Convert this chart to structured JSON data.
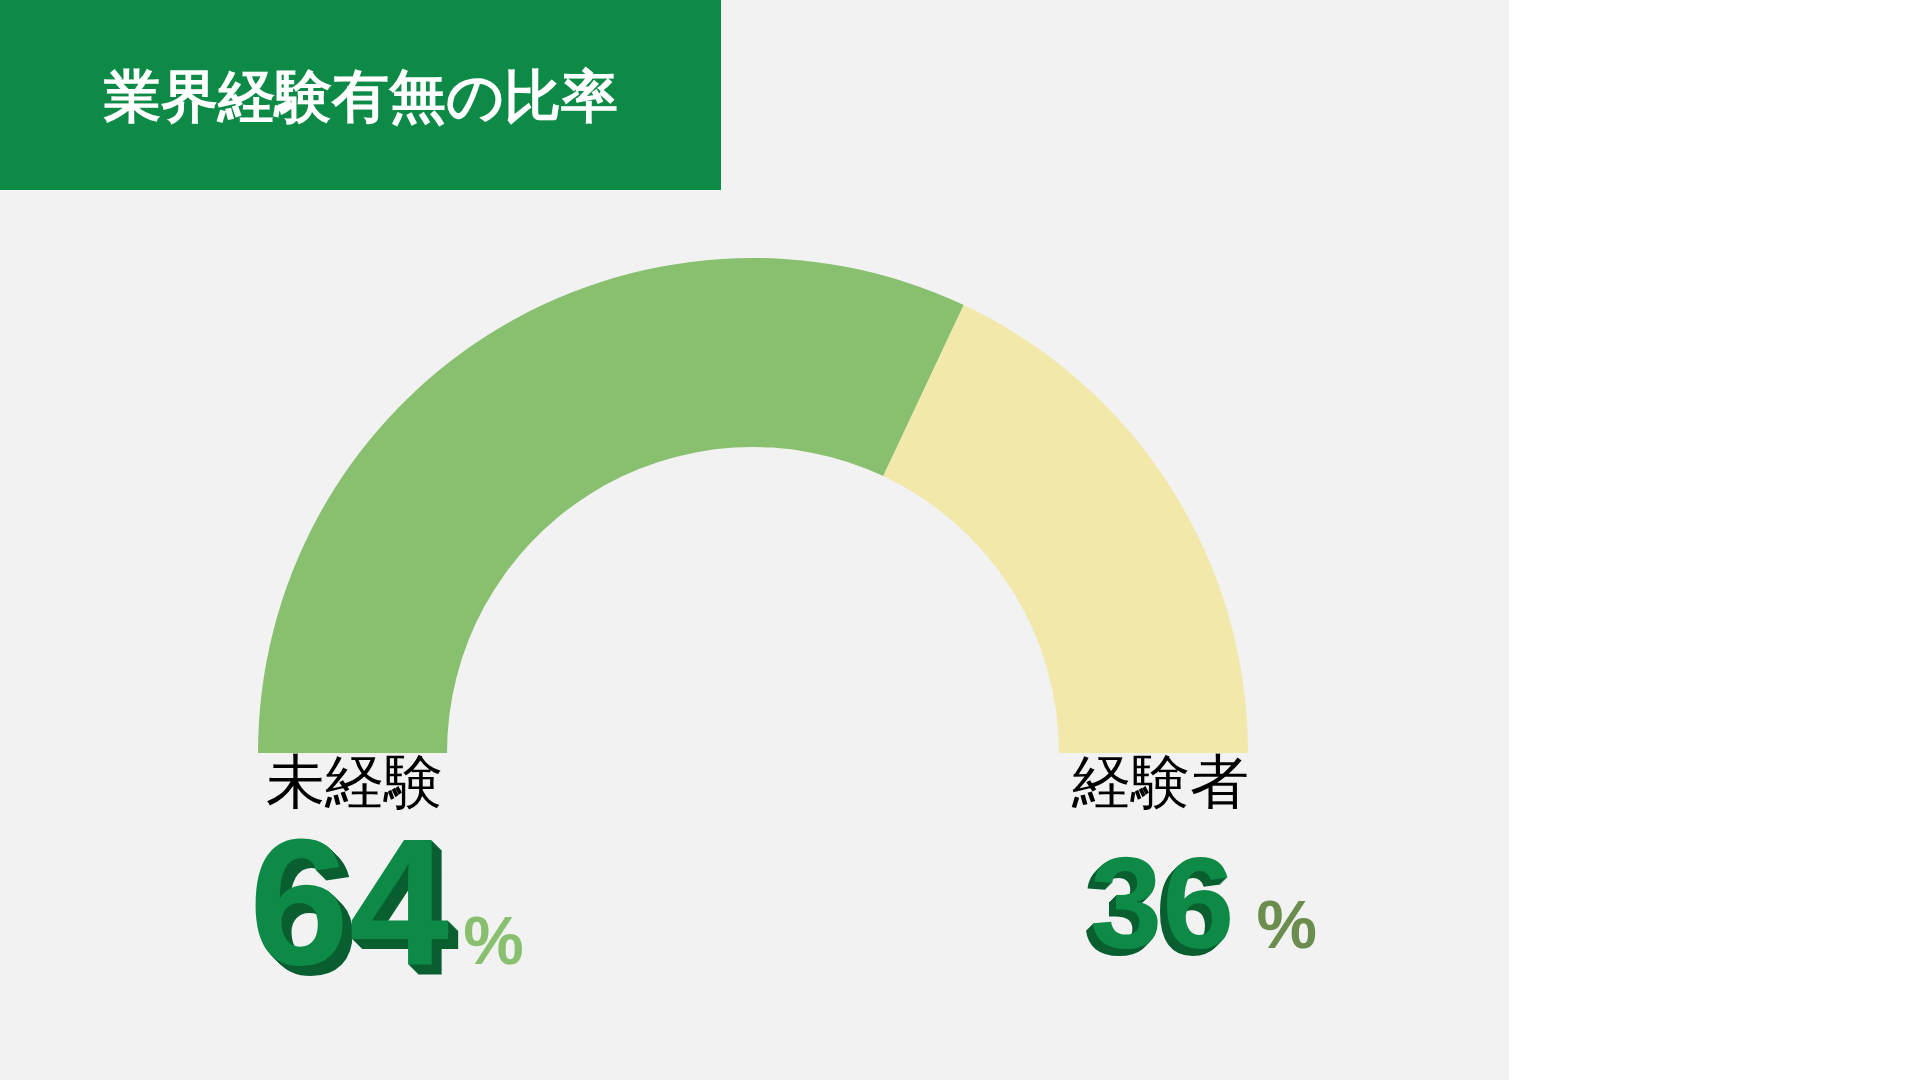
{
  "chart_data": {
    "type": "donut",
    "title": "業界経験有無の比率",
    "categories": [
      "未経験",
      "経験者"
    ],
    "values": [
      64,
      36
    ],
    "colors": [
      "#88c06f",
      "#f1e8a9"
    ],
    "value_labels": [
      "64%",
      "36%"
    ]
  }
}
